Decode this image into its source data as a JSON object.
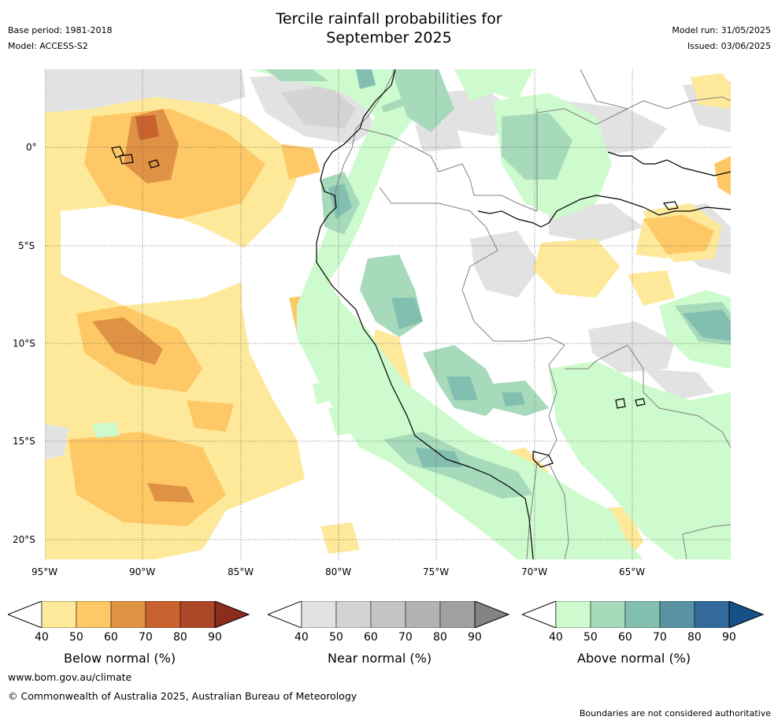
{
  "header": {
    "title_line1": "Tercile rainfall probabilities for",
    "title_line2": "September 2025",
    "base_period": "Base period: 1981-2018",
    "model": "Model: ACCESS-S2",
    "model_run": "Model run: 31/05/2025",
    "issued": "Issued: 03/06/2025"
  },
  "map": {
    "lat_ticks": [
      "0°",
      "5°S",
      "10°S",
      "15°S",
      "20°S"
    ],
    "lon_ticks": [
      "95°W",
      "90°W",
      "85°W",
      "80°W",
      "75°W",
      "70°W",
      "65°W"
    ],
    "colors": {
      "below": [
        "#fee99a",
        "#fdc865",
        "#e09244",
        "#c9622f",
        "#ab4828",
        "#8c2d1e"
      ],
      "near": [
        "#e2e2e2",
        "#d3d3d3",
        "#c4c4c4",
        "#b3b3b3",
        "#a0a0a0",
        "#838383"
      ],
      "above": [
        "#cdfbcd",
        "#a6dabb",
        "#82bfb0",
        "#5992a2",
        "#336a9c",
        "#174f87"
      ],
      "coast": "#000000",
      "border": "#808080"
    }
  },
  "colorbars": [
    {
      "label": "Below normal (%)",
      "ticks": [
        "40",
        "50",
        "60",
        "70",
        "80",
        "90"
      ]
    },
    {
      "label": "Near normal (%)",
      "ticks": [
        "40",
        "50",
        "60",
        "70",
        "80",
        "90"
      ]
    },
    {
      "label": "Above normal (%)",
      "ticks": [
        "40",
        "50",
        "60",
        "70",
        "80",
        "90"
      ]
    }
  ],
  "footer": {
    "website": "www.bom.gov.au/climate",
    "copyright": "© Commonwealth of Australia 2025, Australian Bureau of Meteorology",
    "disclaimer": "Boundaries are not considered authoritative"
  }
}
